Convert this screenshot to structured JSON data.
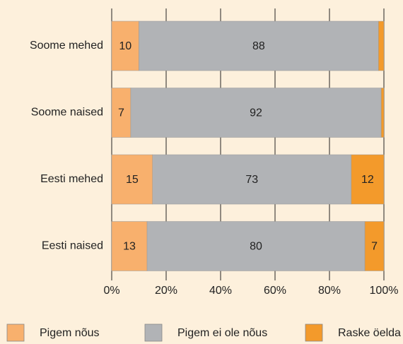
{
  "chart_data": {
    "type": "stacked-barh",
    "categories": [
      "Soome mehed",
      "Soome naised",
      "Eesti mehed",
      "Eesti naised"
    ],
    "series": [
      {
        "name": "Pigem nõus",
        "color": "#f8b06d",
        "values": [
          10,
          7,
          15,
          13
        ]
      },
      {
        "name": "Pigem ei ole nõus",
        "color": "#b1b3b6",
        "values": [
          88,
          92,
          73,
          80
        ]
      },
      {
        "name": "Raske öelda",
        "color": "#f39a2b",
        "values": [
          2,
          1,
          12,
          7
        ]
      }
    ],
    "xlim": [
      0,
      100
    ],
    "xticks": [
      {
        "value": 0,
        "label": "0%"
      },
      {
        "value": 20,
        "label": "20%"
      },
      {
        "value": 40,
        "label": "40%"
      },
      {
        "value": 60,
        "label": "60%"
      },
      {
        "value": 80,
        "label": "80%"
      },
      {
        "value": 100,
        "label": "100%"
      }
    ],
    "grid": true,
    "legend": "bottom"
  }
}
